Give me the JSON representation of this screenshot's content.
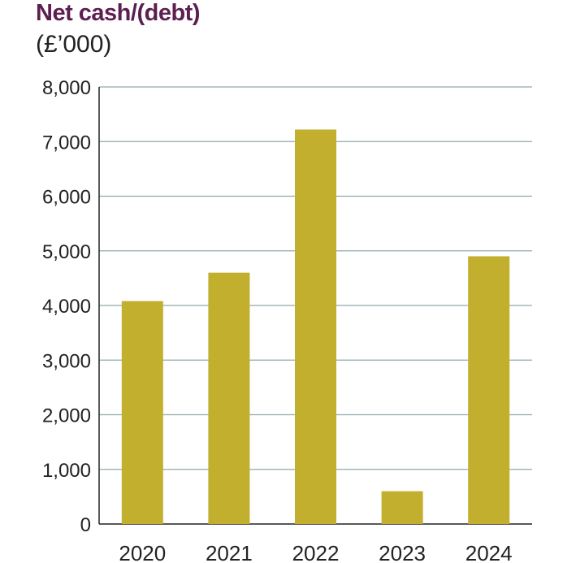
{
  "chart_data": {
    "type": "bar",
    "title": "Net cash/(debt)",
    "subtitle": "(£’000)",
    "categories": [
      "2020",
      "2021",
      "2022",
      "2023",
      "2024"
    ],
    "values": [
      4080,
      4600,
      7220,
      600,
      4900
    ],
    "y_ticks": [
      "0",
      "1,000",
      "2,000",
      "3,000",
      "4,000",
      "5,000",
      "6,000",
      "7,000",
      "8,000"
    ],
    "ylim": [
      0,
      8000
    ],
    "xlabel": "",
    "ylabel": "",
    "grid": true,
    "colors": {
      "bar": "#c2af2e",
      "grid": "#8fa9ae",
      "axis": "#222222"
    }
  }
}
